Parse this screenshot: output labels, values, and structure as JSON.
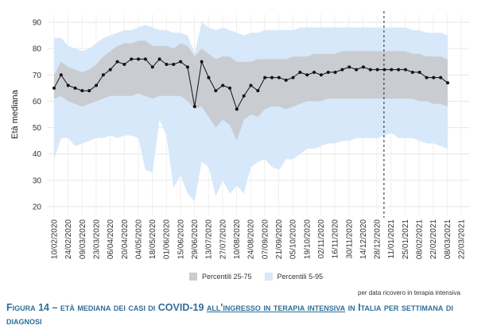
{
  "chart_data": {
    "type": "line",
    "title": "",
    "ylabel": "Età mediana",
    "xlabel": "",
    "ylim": [
      17,
      93
    ],
    "yticks": [
      20,
      30,
      40,
      50,
      60,
      70,
      80,
      90
    ],
    "x_tick_labels": [
      "10/02/2020",
      "24/02/2020",
      "09/03/2020",
      "23/03/2020",
      "06/04/2020",
      "20/04/2020",
      "04/05/2020",
      "18/05/2020",
      "01/06/2020",
      "15/06/2020",
      "29/06/2020",
      "13/07/2020",
      "27/07/2020",
      "10/08/2020",
      "24/08/2020",
      "07/09/2020",
      "21/09/2020",
      "05/10/2020",
      "19/10/2020",
      "02/11/2020",
      "16/11/2020",
      "30/11/2020",
      "14/12/2020",
      "28/12/2020",
      "11/01/2021",
      "25/01/2021",
      "08/02/2021",
      "22/02/2021",
      "08/03/2021",
      "22/03/2021"
    ],
    "vline_label_index": 23.5,
    "series": [
      {
        "name": "Età mediana",
        "values": [
          65,
          70,
          66,
          65,
          64,
          64,
          66,
          70,
          72,
          75,
          74,
          76,
          76,
          76,
          73,
          76,
          74,
          74,
          75,
          73,
          58,
          75,
          69,
          64,
          66,
          65,
          57,
          62,
          66,
          64,
          69,
          69,
          69,
          68,
          69,
          71,
          70,
          71,
          70,
          71,
          71,
          72,
          73,
          72,
          73,
          72,
          72,
          72,
          72,
          72,
          72,
          71,
          71,
          69,
          69,
          69,
          67
        ]
      },
      {
        "name": "Percentili 25-75 (p25)",
        "values": [
          61,
          62,
          60,
          59,
          58,
          59,
          60,
          61,
          62,
          62,
          62,
          62,
          63,
          62,
          61,
          62,
          62,
          62,
          62,
          60,
          57,
          58,
          54,
          50,
          53,
          51,
          45,
          53,
          55,
          54,
          57,
          58,
          58,
          57,
          58,
          59,
          60,
          60,
          60,
          61,
          61,
          61,
          61,
          61,
          61,
          61,
          61,
          61,
          61,
          61,
          61,
          61,
          60,
          60,
          59,
          59,
          58
        ]
      },
      {
        "name": "Percentili 25-75 (p75)",
        "values": [
          70,
          75,
          73,
          72,
          71,
          72,
          74,
          77,
          79,
          81,
          82,
          82,
          83,
          83,
          81,
          81,
          81,
          80,
          82,
          81,
          77,
          80,
          78,
          76,
          77,
          77,
          75,
          75,
          75,
          76,
          76,
          76,
          76,
          76,
          77,
          77,
          77,
          78,
          78,
          78,
          78,
          79,
          79,
          79,
          79,
          79,
          79,
          79,
          79,
          79,
          79,
          78,
          78,
          77,
          77,
          77,
          76
        ]
      },
      {
        "name": "Percentili 5-95 (p5)",
        "values": [
          38,
          46,
          46,
          43,
          44,
          45,
          46,
          46,
          47,
          46,
          47,
          47,
          46,
          34,
          33,
          53,
          47,
          27,
          32,
          25,
          22,
          37,
          35,
          24,
          30,
          25,
          28,
          25,
          35,
          37,
          38,
          35,
          34,
          38,
          38,
          40,
          42,
          42,
          43,
          44,
          44,
          45,
          45,
          46,
          46,
          46,
          46,
          47,
          48,
          46,
          46,
          46,
          45,
          44,
          44,
          43,
          42
        ]
      },
      {
        "name": "Percentili 5-95 (p95)",
        "values": [
          84,
          84,
          81,
          80,
          79,
          80,
          82,
          84,
          85,
          86,
          87,
          87,
          88,
          89,
          88,
          87,
          87,
          86,
          86,
          85,
          78,
          90,
          88,
          87,
          88,
          87,
          86,
          85,
          86,
          86,
          87,
          87,
          87,
          87,
          87,
          88,
          88,
          88,
          88,
          88,
          88,
          88,
          88,
          88,
          88,
          88,
          88,
          88,
          88,
          88,
          88,
          87,
          87,
          86,
          86,
          86,
          85
        ]
      }
    ],
    "legend": [
      {
        "label": "Percentili 25-75",
        "color": "#c9cdd1"
      },
      {
        "label": "Percentili 5-95",
        "color": "#d7e8fa"
      }
    ]
  },
  "colors": {
    "band_outer": "#d7e8fa",
    "band_inner": "#c9cdd1",
    "line": "#111111",
    "caption": "#2f6f97",
    "grid": "#e6e6e6"
  },
  "note": "per data ricovero in terapia intensiva",
  "caption": {
    "part1": "Figura 14 – età mediana dei casi di COVID-19 ",
    "part2": "all'ingresso in terapia intensiva",
    "part3": " in Italia per settimana di diagnosi"
  }
}
